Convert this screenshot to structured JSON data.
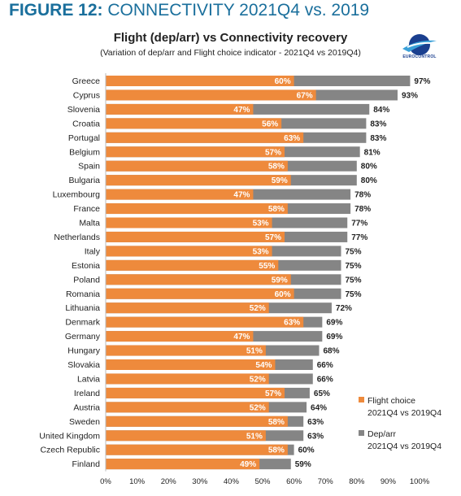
{
  "header": {
    "figure_label": "FIGURE 12:",
    "figure_title": " CONNECTIVITY 2021Q4 vs. 2019"
  },
  "logo": {
    "text": "EUROCONTROL",
    "colors": [
      "#1a3f8f",
      "#3aa0d8"
    ]
  },
  "colors": {
    "flight_choice": "#ee8a3c",
    "dep_arr": "#858585",
    "title_blue": "#1a6f9c"
  },
  "legend": {
    "flight_choice_label": "Flight choice",
    "flight_choice_sub": "2021Q4 vs 2019Q4",
    "dep_arr_label": "Dep/arr",
    "dep_arr_sub": "2021Q4 vs 2019Q4"
  },
  "chart_data": {
    "type": "bar",
    "orientation": "horizontal",
    "title": "Flight (dep/arr) vs Connectivity recovery",
    "subtitle": "(Variation of dep/arr and  Flight choice indicator - 2021Q4 vs 2019Q4)",
    "xlim": [
      0,
      100
    ],
    "x_ticks": [
      "0%",
      "10%",
      "20%",
      "30%",
      "40%",
      "50%",
      "60%",
      "70%",
      "80%",
      "90%",
      "100%"
    ],
    "categories": [
      "Greece",
      "Cyprus",
      "Slovenia",
      "Croatia",
      "Portugal",
      "Belgium",
      "Spain",
      "Bulgaria",
      "Luxembourg",
      "France",
      "Malta",
      "Netherlands",
      "Italy",
      "Estonia",
      "Poland",
      "Romania",
      "Lithuania",
      "Denmark",
      "Germany",
      "Hungary",
      "Slovakia",
      "Latvia",
      "Ireland",
      "Austria",
      "Sweden",
      "United Kingdom",
      "Czech Republic",
      "Finland"
    ],
    "series": [
      {
        "name": "Flight choice 2021Q4 vs 2019Q4",
        "values": [
          60,
          67,
          47,
          56,
          63,
          57,
          58,
          59,
          47,
          58,
          53,
          57,
          53,
          55,
          59,
          60,
          52,
          63,
          47,
          51,
          54,
          52,
          57,
          52,
          58,
          51,
          58,
          49
        ]
      },
      {
        "name": "Dep/arr 2021Q4 vs 2019Q4",
        "values": [
          97,
          93,
          84,
          83,
          83,
          81,
          80,
          80,
          78,
          78,
          77,
          77,
          75,
          75,
          75,
          75,
          72,
          69,
          69,
          68,
          66,
          66,
          65,
          64,
          63,
          63,
          60,
          59
        ]
      }
    ],
    "legend_position": "bottom-right",
    "grid": false
  }
}
